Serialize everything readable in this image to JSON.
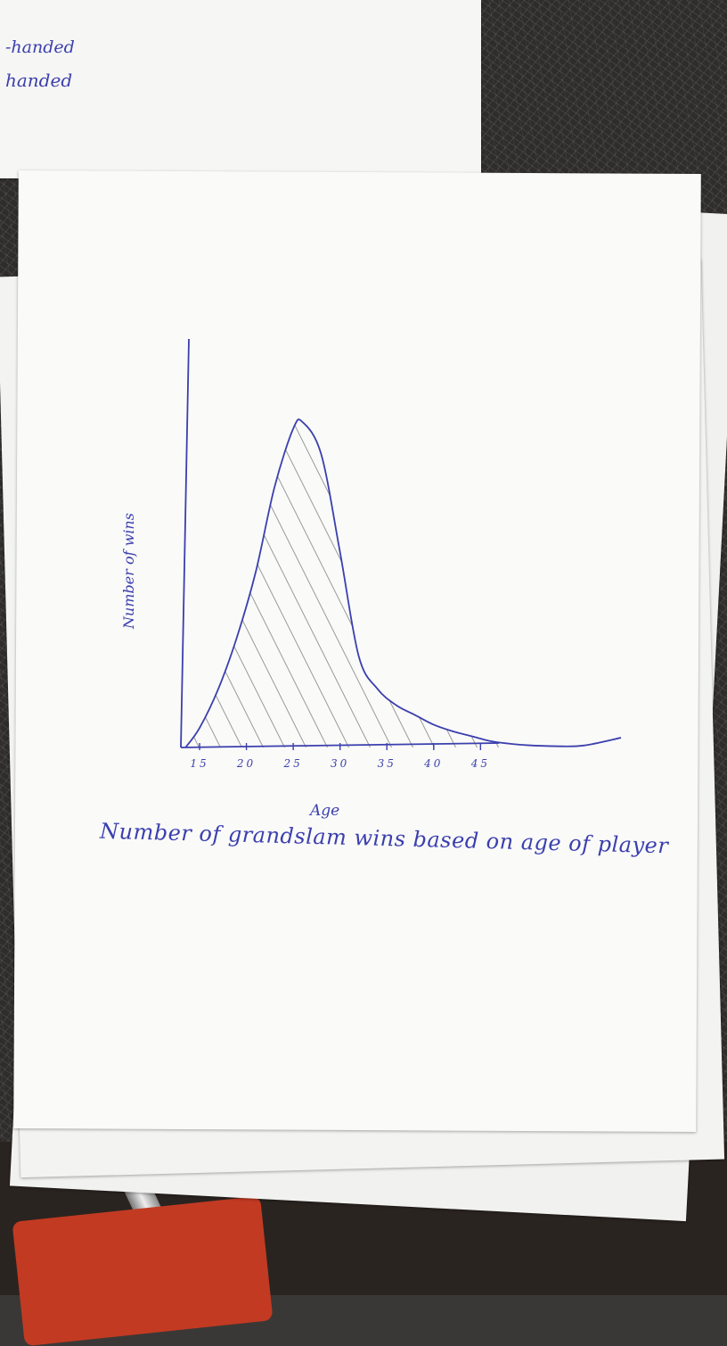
{
  "top_sheet": {
    "lines": [
      "-handed",
      "handed"
    ]
  },
  "chart_data": {
    "type": "area",
    "title": "Number of grandslam wins based on age of player",
    "xlabel": "Age",
    "ylabel": "Number of wins",
    "x_ticks": [
      15,
      20,
      25,
      30,
      35,
      40,
      45
    ],
    "xlim": [
      13,
      60
    ],
    "ylim": [
      0,
      1.05
    ],
    "grid": false,
    "legend": "none",
    "y_tick_labels_shown": false,
    "curve_color": "#3b3fae",
    "hatch_color": "#9a9a9a",
    "series": [
      {
        "x": [
          13.5,
          15,
          17,
          19,
          21,
          23,
          25,
          26,
          28,
          30,
          32,
          34,
          36,
          38,
          40,
          42,
          44,
          46,
          48,
          50,
          53,
          56,
          60
        ],
        "y": [
          0,
          0.06,
          0.18,
          0.34,
          0.54,
          0.8,
          0.98,
          1.0,
          0.9,
          0.6,
          0.28,
          0.18,
          0.13,
          0.1,
          0.07,
          0.05,
          0.035,
          0.02,
          0.012,
          0.007,
          0.004,
          0.006,
          0.03
        ]
      }
    ]
  }
}
